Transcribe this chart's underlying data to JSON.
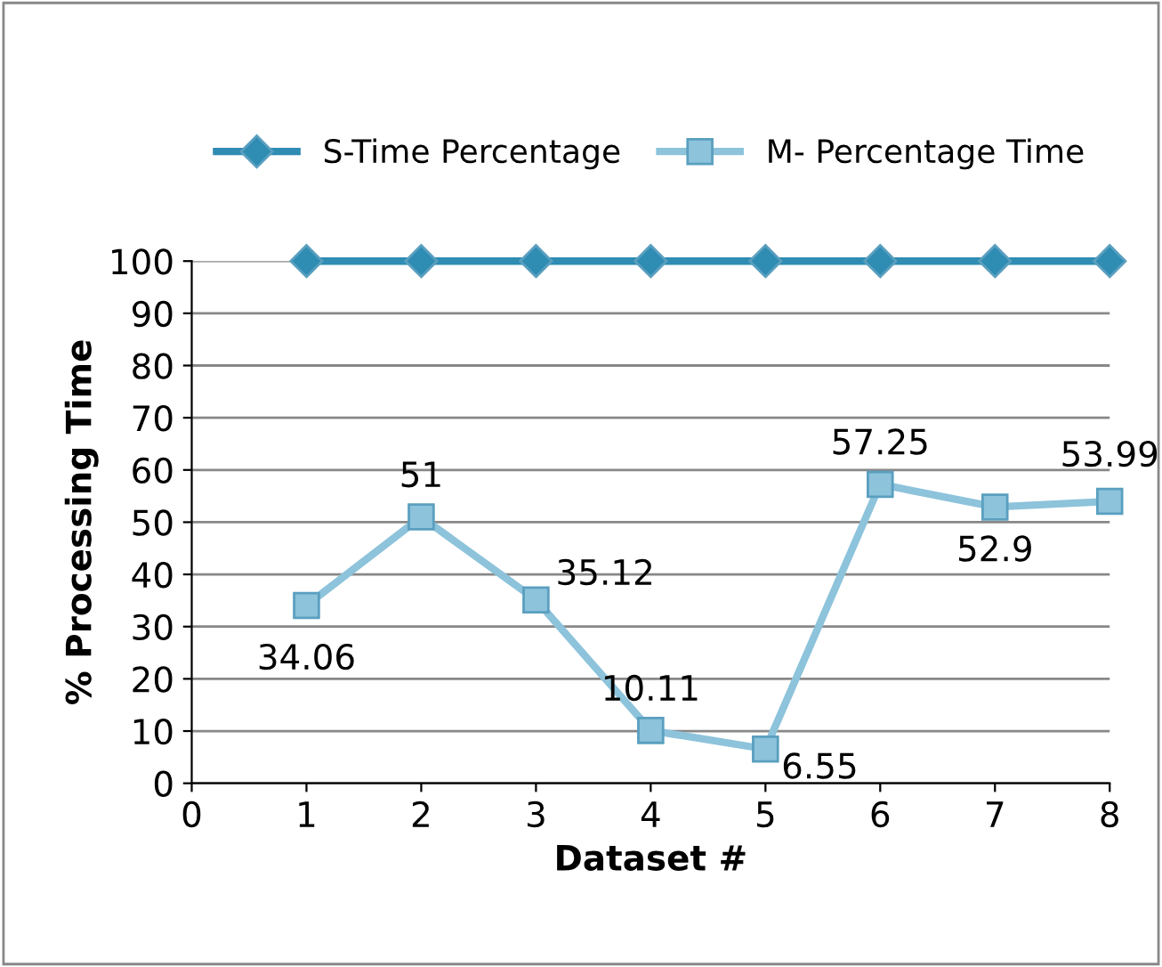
{
  "chart_data": {
    "type": "line",
    "xlabel": "Dataset #",
    "ylabel": "% Processing Time",
    "x": [
      1,
      2,
      3,
      4,
      5,
      6,
      7,
      8
    ],
    "series": [
      {
        "name": "S-Time Percentage",
        "color": "#2f8cb3",
        "marker": "diamond",
        "values": [
          100,
          100,
          100,
          100,
          100,
          100,
          100,
          100
        ]
      },
      {
        "name": "M- Percentage Time",
        "color": "#8dc3db",
        "marker": "square",
        "data_labels": true,
        "values": [
          34.06,
          51,
          35.12,
          10.11,
          6.55,
          57.25,
          52.9,
          53.99
        ]
      }
    ],
    "xlim": [
      0,
      8
    ],
    "xticks": [
      0,
      1,
      2,
      3,
      4,
      5,
      6,
      7,
      8
    ],
    "ylim": [
      0,
      100
    ],
    "yticks": [
      0,
      10,
      20,
      30,
      40,
      50,
      60,
      70,
      80,
      90,
      100
    ],
    "grid": "y",
    "legend": "top",
    "line_style": "solid"
  }
}
